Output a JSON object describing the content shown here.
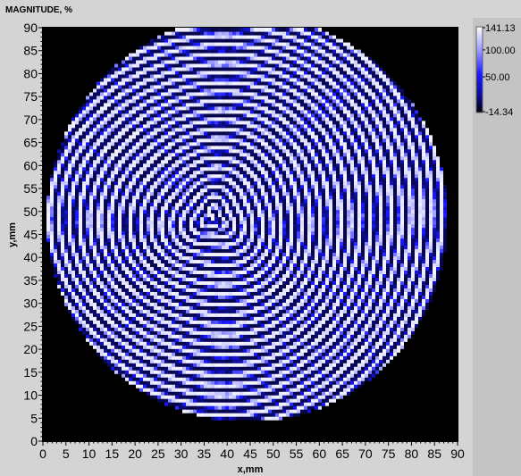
{
  "window": {
    "title": "MAGNITUDE, %"
  },
  "chart_data": {
    "type": "heatmap",
    "title": "MAGNITUDE, %",
    "xlabel": "x,mm",
    "ylabel": "y,mm",
    "xlim": [
      0,
      90
    ],
    "ylim": [
      0,
      90
    ],
    "x_ticks": [
      "0",
      "5",
      "10",
      "15",
      "20",
      "25",
      "30",
      "35",
      "40",
      "45",
      "50",
      "55",
      "60",
      "65",
      "70",
      "75",
      "80",
      "85",
      "90"
    ],
    "y_ticks": [
      "0",
      "5",
      "10",
      "15",
      "20",
      "25",
      "30",
      "35",
      "40",
      "45",
      "50",
      "55",
      "60",
      "65",
      "70",
      "75",
      "80",
      "85",
      "90"
    ],
    "field": {
      "description_free": true,
      "disk_center_mm": [
        44.4,
        48.5
      ],
      "disk_radius_mm": [
        43.5,
        44.2
      ],
      "ring_origin_mm": [
        37.0,
        48.5
      ],
      "background_value": -14.34
    },
    "colorbar": {
      "min": -14.34,
      "max": 141.13,
      "labels": [
        "141.13",
        "100.00",
        "50.00",
        "-14.34"
      ],
      "label_values": [
        141.13,
        100.0,
        50.0,
        -14.34
      ],
      "colors": [
        "#000000",
        "#1010ff",
        "#ffffff"
      ]
    }
  }
}
